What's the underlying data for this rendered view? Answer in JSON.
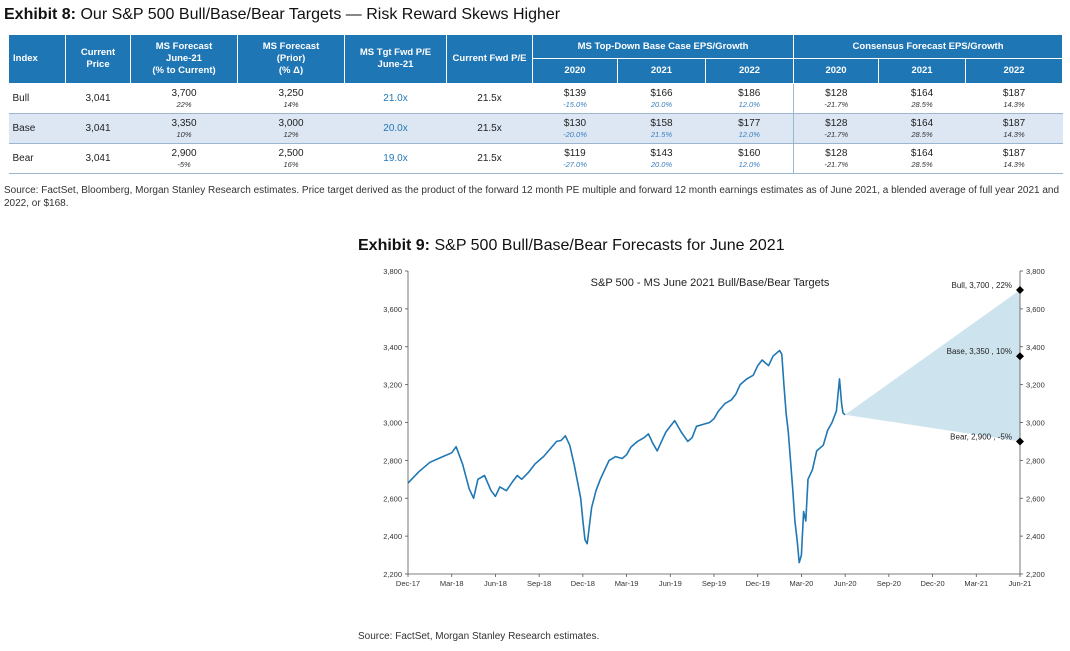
{
  "exhibit8": {
    "label": "Exhibit 8:",
    "title": "Our S&P 500 Bull/Base/Bear Targets — Risk Reward Skews Higher",
    "headers": {
      "index": "Index",
      "current_price": [
        "Current",
        "Price"
      ],
      "ms_forecast": [
        "MS Forecast",
        "June-21",
        "(% to Current)"
      ],
      "ms_forecast_prior": [
        "MS Forecast",
        "(Prior)",
        "(% Δ)"
      ],
      "ms_tgt_pe": [
        "MS Tgt Fwd P/E",
        "June-21"
      ],
      "current_pe": "Current Fwd P/E",
      "group_ms": "MS Top-Down Base Case EPS/Growth",
      "group_consensus": "Consensus Forecast EPS/Growth",
      "years": [
        "2020",
        "2021",
        "2022"
      ]
    },
    "rows": [
      {
        "index": "Bull",
        "price": "3,041",
        "forecast": "3,700",
        "forecast_pct": "22%",
        "prior": "3,250",
        "prior_pct": "14%",
        "tgt_pe": "21.0x",
        "cur_pe": "21.5x",
        "ms_eps": [
          "$139",
          "$166",
          "$186"
        ],
        "ms_growth": [
          "-15.0%",
          "20.0%",
          "12.0%"
        ],
        "cons_eps": [
          "$128",
          "$164",
          "$187"
        ],
        "cons_growth": [
          "-21.7%",
          "28.5%",
          "14.3%"
        ]
      },
      {
        "index": "Base",
        "price": "3,041",
        "forecast": "3,350",
        "forecast_pct": "10%",
        "prior": "3,000",
        "prior_pct": "12%",
        "tgt_pe": "20.0x",
        "cur_pe": "21.5x",
        "ms_eps": [
          "$130",
          "$158",
          "$177"
        ],
        "ms_growth": [
          "-20.0%",
          "21.5%",
          "12.0%"
        ],
        "cons_eps": [
          "$128",
          "$164",
          "$187"
        ],
        "cons_growth": [
          "-21.7%",
          "28.5%",
          "14.3%"
        ]
      },
      {
        "index": "Bear",
        "price": "3,041",
        "forecast": "2,900",
        "forecast_pct": "-5%",
        "prior": "2,500",
        "prior_pct": "16%",
        "tgt_pe": "19.0x",
        "cur_pe": "21.5x",
        "ms_eps": [
          "$119",
          "$143",
          "$160"
        ],
        "ms_growth": [
          "-27.0%",
          "20.0%",
          "12.0%"
        ],
        "cons_eps": [
          "$128",
          "$164",
          "$187"
        ],
        "cons_growth": [
          "-21.7%",
          "28.5%",
          "14.3%"
        ]
      }
    ],
    "source": "Source: FactSet, Bloomberg, Morgan Stanley Research estimates. Price target derived as the product of the forward 12 month PE multiple and forward 12 month earnings estimates as of June 2021, a blended average of full year 2021 and 2022, or $168."
  },
  "exhibit9": {
    "label": "Exhibit 9:",
    "title": "S&P 500 Bull/Base/Bear Forecasts for June 2021",
    "source": "Source: FactSet, Morgan Stanley Research estimates."
  },
  "chart_data": {
    "type": "line",
    "title": "S&P 500 - MS June 2021 Bull/Base/Bear Targets",
    "xlabel": "",
    "ylabel": "",
    "ylim": [
      2200,
      3800
    ],
    "y_ticks": [
      "2,200",
      "2,400",
      "2,600",
      "2,800",
      "3,000",
      "3,200",
      "3,400",
      "3,600",
      "3,800"
    ],
    "x_ticks": [
      "Dec-17",
      "Mar-18",
      "Jun-18",
      "Sep-18",
      "Dec-18",
      "Mar-19",
      "Jun-19",
      "Sep-19",
      "Dec-19",
      "Mar-20",
      "Jun-20",
      "Sep-20",
      "Dec-20",
      "Mar-21",
      "Jun-21"
    ],
    "series": [
      {
        "values": [
          [
            0,
            2680
          ],
          [
            0.25,
            2740
          ],
          [
            0.5,
            2790
          ],
          [
            0.75,
            2815
          ],
          [
            1.0,
            2840
          ],
          [
            1.1,
            2872
          ],
          [
            1.25,
            2780
          ],
          [
            1.4,
            2650
          ],
          [
            1.5,
            2600
          ],
          [
            1.6,
            2700
          ],
          [
            1.75,
            2720
          ],
          [
            1.9,
            2640
          ],
          [
            2.0,
            2610
          ],
          [
            2.1,
            2660
          ],
          [
            2.25,
            2640
          ],
          [
            2.4,
            2690
          ],
          [
            2.5,
            2720
          ],
          [
            2.6,
            2700
          ],
          [
            2.75,
            2735
          ],
          [
            2.9,
            2780
          ],
          [
            3.0,
            2800
          ],
          [
            3.1,
            2820
          ],
          [
            3.25,
            2860
          ],
          [
            3.4,
            2900
          ],
          [
            3.5,
            2905
          ],
          [
            3.6,
            2930
          ],
          [
            3.7,
            2880
          ],
          [
            3.8,
            2780
          ],
          [
            3.9,
            2660
          ],
          [
            3.95,
            2600
          ],
          [
            4.0,
            2480
          ],
          [
            4.05,
            2380
          ],
          [
            4.1,
            2360
          ],
          [
            4.2,
            2550
          ],
          [
            4.3,
            2640
          ],
          [
            4.4,
            2700
          ],
          [
            4.5,
            2750
          ],
          [
            4.6,
            2800
          ],
          [
            4.75,
            2820
          ],
          [
            4.9,
            2810
          ],
          [
            5.0,
            2830
          ],
          [
            5.1,
            2870
          ],
          [
            5.25,
            2900
          ],
          [
            5.4,
            2920
          ],
          [
            5.5,
            2940
          ],
          [
            5.6,
            2890
          ],
          [
            5.7,
            2850
          ],
          [
            5.8,
            2900
          ],
          [
            5.9,
            2950
          ],
          [
            6.0,
            2980
          ],
          [
            6.1,
            3010
          ],
          [
            6.25,
            2950
          ],
          [
            6.4,
            2900
          ],
          [
            6.5,
            2920
          ],
          [
            6.6,
            2980
          ],
          [
            6.75,
            2990
          ],
          [
            6.9,
            3000
          ],
          [
            7.0,
            3020
          ],
          [
            7.1,
            3060
          ],
          [
            7.25,
            3100
          ],
          [
            7.4,
            3120
          ],
          [
            7.5,
            3150
          ],
          [
            7.6,
            3200
          ],
          [
            7.75,
            3230
          ],
          [
            7.9,
            3250
          ],
          [
            8.0,
            3300
          ],
          [
            8.1,
            3330
          ],
          [
            8.25,
            3300
          ],
          [
            8.35,
            3350
          ],
          [
            8.5,
            3380
          ],
          [
            8.55,
            3360
          ],
          [
            8.6,
            3200
          ],
          [
            8.65,
            3050
          ],
          [
            8.7,
            2950
          ],
          [
            8.75,
            2800
          ],
          [
            8.8,
            2650
          ],
          [
            8.85,
            2480
          ],
          [
            8.9,
            2380
          ],
          [
            8.95,
            2260
          ],
          [
            9.0,
            2300
          ],
          [
            9.05,
            2530
          ],
          [
            9.1,
            2480
          ],
          [
            9.15,
            2700
          ],
          [
            9.25,
            2750
          ],
          [
            9.35,
            2850
          ],
          [
            9.5,
            2880
          ],
          [
            9.6,
            2960
          ],
          [
            9.7,
            3000
          ],
          [
            9.8,
            3060
          ],
          [
            9.87,
            3230
          ],
          [
            9.92,
            3100
          ],
          [
            9.95,
            3050
          ],
          [
            10.0,
            3041
          ]
        ]
      }
    ],
    "projection_origin": {
      "x": 10.0,
      "y": 3041
    },
    "scenarios": [
      {
        "name": "Bull",
        "x": 14,
        "value": 3700,
        "label": "Bull, 3,700 , 22%"
      },
      {
        "name": "Base",
        "x": 14,
        "value": 3350,
        "label": "Base, 3,350 , 10%"
      },
      {
        "name": "Bear",
        "x": 14,
        "value": 2900,
        "label": "Bear, 2,900 , -5%"
      }
    ],
    "colors": {
      "line": "#1f77b4",
      "fan": "#cde4ee",
      "marker": "#000000",
      "axis": "#555555"
    },
    "grid": false,
    "legend": "none"
  }
}
